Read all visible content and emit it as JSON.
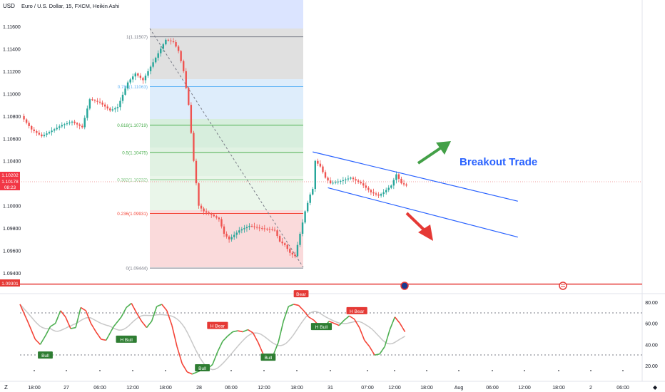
{
  "header": {
    "currency": "USD",
    "title": "Euro / U.S. Dollar, 15, FXCM, Heikin Ashi"
  },
  "price_axis": {
    "ticks": [
      "1.11600",
      "1.11400",
      "1.11200",
      "1.11000",
      "1.10800",
      "1.10600",
      "1.10400",
      "1.10000",
      "1.09800",
      "1.09600",
      "1.09400"
    ],
    "tick_values": [
      1.116,
      1.114,
      1.112,
      1.11,
      1.108,
      1.106,
      1.104,
      1.1,
      1.098,
      1.096,
      1.094
    ],
    "current_price_top": "1.10202",
    "current_price": "1.10178",
    "countdown": "08:23",
    "support_label": "1.09301"
  },
  "fib_levels": [
    {
      "label": "1(1.11507)",
      "value": 1.11507,
      "color": "#787b86"
    },
    {
      "label": "0.786(1.11063)",
      "value": 1.11063,
      "color": "#64b5f6"
    },
    {
      "label": "0.618(1.10719)",
      "value": 1.10719,
      "color": "#4caf50"
    },
    {
      "label": "0.5(1.10475)",
      "value": 1.10475,
      "color": "#4caf50"
    },
    {
      "label": "0.382(1.10232)",
      "value": 1.10232,
      "color": "#81c784"
    },
    {
      "label": "0.236(1.09931)",
      "value": 1.09931,
      "color": "#f44336"
    },
    {
      "label": "0(1.09444)",
      "value": 1.09444,
      "color": "#787b86"
    }
  ],
  "annotation": {
    "breakout_text": "Breakout Trade",
    "breakout_color": "#2962ff",
    "up_arrow_color": "#43a047",
    "down_arrow_color": "#e53935"
  },
  "oscillator": {
    "ticks": [
      "80.00",
      "60.00",
      "40.00",
      "20.00"
    ],
    "tick_values": [
      80,
      60,
      40,
      20
    ],
    "upper_band": 70,
    "lower_band": 30,
    "labels": [
      {
        "text": "Bull",
        "type": "bull"
      },
      {
        "text": "H Bull",
        "type": "bull"
      },
      {
        "text": "Bull",
        "type": "bull"
      },
      {
        "text": "H Bear",
        "type": "bear"
      },
      {
        "text": "Bull",
        "type": "bull"
      },
      {
        "text": "Bear",
        "type": "bear"
      },
      {
        "text": "H Bull",
        "type": "bull"
      },
      {
        "text": "H Bear",
        "type": "bear"
      }
    ]
  },
  "time_axis": {
    "ticks": [
      "18:00",
      "27",
      "06:00",
      "12:00",
      "18:00",
      "28",
      "06:00",
      "12:00",
      "18:00",
      "31",
      "07:00",
      "12:00",
      "18:00",
      "Aug",
      "06:00",
      "12:00",
      "18:00",
      "2",
      "06:00"
    ]
  },
  "chart_data": {
    "type": "candlestick",
    "symbol": "EURUSD",
    "interval": "15",
    "price_ylim": [
      1.093,
      1.1165
    ],
    "price_path": [
      [
        0,
        1.108
      ],
      [
        4,
        1.1068
      ],
      [
        8,
        1.1062
      ],
      [
        12,
        1.1067
      ],
      [
        16,
        1.1072
      ],
      [
        20,
        1.1075
      ],
      [
        24,
        1.107
      ],
      [
        27,
        1.1095
      ],
      [
        31,
        1.1092
      ],
      [
        35,
        1.1085
      ],
      [
        38,
        1.1088
      ],
      [
        42,
        1.111
      ],
      [
        45,
        1.1118
      ],
      [
        48,
        1.1112
      ],
      [
        52,
        1.1128
      ],
      [
        55,
        1.114
      ],
      [
        57,
        1.1148
      ],
      [
        60,
        1.1146
      ],
      [
        62,
        1.1138
      ],
      [
        64,
        1.112
      ],
      [
        66,
        1.109
      ],
      [
        68,
        1.104
      ],
      [
        70,
        1.1
      ],
      [
        72,
        1.0995
      ],
      [
        75,
        1.0992
      ],
      [
        78,
        1.0988
      ],
      [
        80,
        1.0975
      ],
      [
        82,
        1.097
      ],
      [
        86,
        1.0978
      ],
      [
        90,
        1.0982
      ],
      [
        94,
        1.098
      ],
      [
        98,
        1.0979
      ],
      [
        100,
        1.0978
      ],
      [
        102,
        1.0968
      ],
      [
        104,
        1.0965
      ],
      [
        106,
        1.0958
      ],
      [
        108,
        1.0955
      ],
      [
        110,
        1.0975
      ],
      [
        112,
        1.0995
      ],
      [
        114,
        1.101
      ],
      [
        115,
        1.1015
      ],
      [
        116,
        1.104
      ],
      [
        118,
        1.1035
      ],
      [
        120,
        1.1025
      ],
      [
        122,
        1.102
      ],
      [
        126,
        1.1022
      ],
      [
        130,
        1.1025
      ],
      [
        134,
        1.102
      ],
      [
        138,
        1.1012
      ],
      [
        141,
        1.1009
      ],
      [
        143,
        1.1012
      ],
      [
        146,
        1.1018
      ],
      [
        148,
        1.1028
      ],
      [
        150,
        1.102
      ],
      [
        152,
        1.1018
      ]
    ],
    "channel_upper": [
      [
        115,
        1.1048
      ],
      [
        196,
        1.1004
      ]
    ],
    "channel_lower": [
      [
        121,
        1.1016
      ],
      [
        196,
        1.0972
      ]
    ],
    "support_level": 1.09301,
    "osc_path": [
      [
        0,
        78
      ],
      [
        3,
        62
      ],
      [
        6,
        45
      ],
      [
        8,
        40
      ],
      [
        10,
        48
      ],
      [
        12,
        57
      ],
      [
        14,
        60
      ],
      [
        16,
        72
      ],
      [
        18,
        66
      ],
      [
        20,
        55
      ],
      [
        22,
        56
      ],
      [
        24,
        75
      ],
      [
        26,
        72
      ],
      [
        28,
        60
      ],
      [
        30,
        52
      ],
      [
        32,
        45
      ],
      [
        34,
        44
      ],
      [
        37,
        57
      ],
      [
        40,
        66
      ],
      [
        42,
        75
      ],
      [
        44,
        79
      ],
      [
        46,
        70
      ],
      [
        48,
        62
      ],
      [
        50,
        56
      ],
      [
        52,
        62
      ],
      [
        54,
        76
      ],
      [
        56,
        78
      ],
      [
        58,
        72
      ],
      [
        60,
        58
      ],
      [
        62,
        38
      ],
      [
        64,
        22
      ],
      [
        66,
        14
      ],
      [
        68,
        12
      ],
      [
        70,
        14
      ],
      [
        72,
        16
      ],
      [
        74,
        17
      ],
      [
        76,
        21
      ],
      [
        78,
        33
      ],
      [
        80,
        43
      ],
      [
        82,
        48
      ],
      [
        84,
        52
      ],
      [
        86,
        53
      ],
      [
        88,
        52
      ],
      [
        90,
        54
      ],
      [
        92,
        51
      ],
      [
        94,
        42
      ],
      [
        96,
        31
      ],
      [
        98,
        28
      ],
      [
        100,
        30
      ],
      [
        102,
        42
      ],
      [
        104,
        62
      ],
      [
        106,
        76
      ],
      [
        108,
        78
      ],
      [
        110,
        77
      ],
      [
        112,
        72
      ],
      [
        114,
        66
      ],
      [
        116,
        63
      ],
      [
        118,
        58
      ],
      [
        120,
        56
      ],
      [
        122,
        62
      ],
      [
        124,
        60
      ],
      [
        126,
        58
      ],
      [
        128,
        63
      ],
      [
        130,
        67
      ],
      [
        132,
        64
      ],
      [
        134,
        56
      ],
      [
        136,
        44
      ],
      [
        138,
        38
      ],
      [
        140,
        30
      ],
      [
        142,
        31
      ],
      [
        144,
        38
      ],
      [
        146,
        54
      ],
      [
        148,
        66
      ],
      [
        150,
        60
      ],
      [
        152,
        52
      ]
    ],
    "osc_ylim": [
      13,
      83
    ]
  }
}
